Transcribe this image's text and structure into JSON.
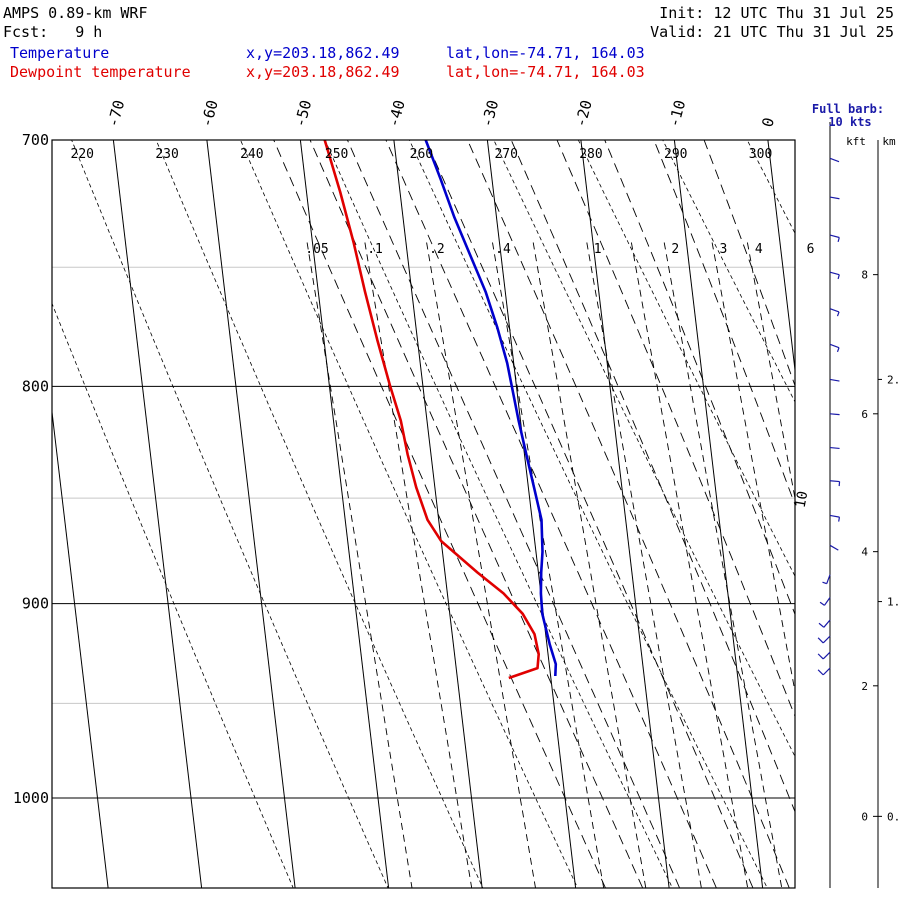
{
  "header": {
    "model": "AMPS 0.89-km WRF",
    "init": "Init: 12 UTC Thu 31 Jul 25",
    "fcst": "Fcst:   9 h",
    "valid": "Valid: 21 UTC Thu 31 Jul 25"
  },
  "legend": [
    {
      "name": "Temperature",
      "xy": "x,y=203.18,862.49",
      "latlon": "lat,lon=-74.71, 164.03",
      "color": "#0000cc"
    },
    {
      "name": "Dewpoint temperature",
      "xy": "x,y=203.18,862.49",
      "latlon": "lat,lon=-74.71, 164.03",
      "color": "#e00000"
    }
  ],
  "barb_note": {
    "line1": "Full barb:",
    "line2": "10 kts"
  },
  "height_axes": {
    "kft_label": "kft",
    "km_label": "km"
  },
  "chart_data": {
    "type": "line",
    "title": "",
    "xlabel": "",
    "ylabel": "",
    "pressure_axis": {
      "ylim": [
        1050,
        700
      ],
      "ticks": [
        700,
        800,
        900,
        1000
      ],
      "minor_ticks": [
        750,
        850,
        950
      ],
      "scale": "log"
    },
    "temperature_ticks": [
      -70,
      -60,
      -50,
      -40,
      -30,
      -20,
      -10,
      0
    ],
    "isotherm_spacing_deg": 10,
    "skew_deg_per_decade": 53.6,
    "dry_adiabat_labels_K": [
      220,
      230,
      240,
      250,
      260,
      270,
      280,
      290,
      300
    ],
    "dry_adiabat_range_K": [
      210,
      340
    ],
    "mixing_ratio_labels": [
      {
        "label": ".05",
        "w": 0.05
      },
      {
        "label": ".1",
        "w": 0.1
      },
      {
        "label": ".2",
        "w": 0.2
      },
      {
        "label": ".4",
        "w": 0.4
      },
      {
        "label": "1",
        "w": 1
      },
      {
        "label": "2",
        "w": 2
      },
      {
        "label": "3",
        "w": 3
      },
      {
        "label": "4",
        "w": 4
      },
      {
        "label": "6",
        "w": 6
      }
    ],
    "extra_mixing_ratios": [
      0.6,
      1.5
    ],
    "moist_adiabat_theta_w_C": [
      -30,
      -26,
      -22,
      -18,
      -14,
      -10,
      -6,
      -2,
      2,
      6,
      10
    ],
    "series": [
      {
        "name": "Temperature",
        "color": "#0000cc",
        "points": [
          {
            "p": 936,
            "t": -29.5
          },
          {
            "p": 930,
            "t": -29.3
          },
          {
            "p": 920,
            "t": -29.7
          },
          {
            "p": 905,
            "t": -30.1
          },
          {
            "p": 895,
            "t": -30.0
          },
          {
            "p": 885,
            "t": -29.7
          },
          {
            "p": 875,
            "t": -29.3
          },
          {
            "p": 860,
            "t": -29.0
          },
          {
            "p": 845,
            "t": -29.4
          },
          {
            "p": 830,
            "t": -29.8
          },
          {
            "p": 815,
            "t": -30.2
          },
          {
            "p": 800,
            "t": -30.5
          },
          {
            "p": 790,
            "t": -30.7
          },
          {
            "p": 775,
            "t": -31.3
          },
          {
            "p": 760,
            "t": -32.1
          },
          {
            "p": 745,
            "t": -33.3
          },
          {
            "p": 730,
            "t": -34.5
          },
          {
            "p": 715,
            "t": -35.5
          },
          {
            "p": 700,
            "t": -36.6
          }
        ]
      },
      {
        "name": "Dewpoint temperature",
        "color": "#e00000",
        "points": [
          {
            "p": 937,
            "t": -34.5
          },
          {
            "p": 932,
            "t": -31.3
          },
          {
            "p": 925,
            "t": -31.0
          },
          {
            "p": 915,
            "t": -31.2
          },
          {
            "p": 905,
            "t": -32.2
          },
          {
            "p": 895,
            "t": -34.0
          },
          {
            "p": 885,
            "t": -36.5
          },
          {
            "p": 870,
            "t": -40.0
          },
          {
            "p": 860,
            "t": -41.2
          },
          {
            "p": 845,
            "t": -42.0
          },
          {
            "p": 830,
            "t": -42.5
          },
          {
            "p": 815,
            "t": -42.8
          },
          {
            "p": 800,
            "t": -43.5
          },
          {
            "p": 780,
            "t": -44.3
          },
          {
            "p": 760,
            "t": -45.0
          },
          {
            "p": 740,
            "t": -45.6
          },
          {
            "p": 720,
            "t": -46.4
          },
          {
            "p": 700,
            "t": -47.4
          }
        ]
      }
    ],
    "wind_barbs": [
      {
        "p": 932,
        "speed_kt": 8,
        "dir_deg": 225
      },
      {
        "p": 924,
        "speed_kt": 8,
        "dir_deg": 225
      },
      {
        "p": 916,
        "speed_kt": 8,
        "dir_deg": 225
      },
      {
        "p": 908,
        "speed_kt": 7,
        "dir_deg": 220
      },
      {
        "p": 897,
        "speed_kt": 6,
        "dir_deg": 215
      },
      {
        "p": 886,
        "speed_kt": 5,
        "dir_deg": 200
      },
      {
        "p": 872,
        "speed_kt": 3,
        "dir_deg": 120
      },
      {
        "p": 858,
        "speed_kt": 5,
        "dir_deg": 100
      },
      {
        "p": 842,
        "speed_kt": 5,
        "dir_deg": 95
      },
      {
        "p": 827,
        "speed_kt": 4,
        "dir_deg": 95
      },
      {
        "p": 812,
        "speed_kt": 4,
        "dir_deg": 95
      },
      {
        "p": 797,
        "speed_kt": 4,
        "dir_deg": 100
      },
      {
        "p": 782,
        "speed_kt": 5,
        "dir_deg": 110
      },
      {
        "p": 767,
        "speed_kt": 5,
        "dir_deg": 110
      },
      {
        "p": 752,
        "speed_kt": 5,
        "dir_deg": 105
      },
      {
        "p": 737,
        "speed_kt": 5,
        "dir_deg": 105
      },
      {
        "p": 722,
        "speed_kt": 4,
        "dir_deg": 100
      },
      {
        "p": 707,
        "speed_kt": 4,
        "dir_deg": 110
      }
    ],
    "kft_ticks": [
      {
        "label": "0",
        "p": 1010
      },
      {
        "label": "2",
        "p": 941
      },
      {
        "label": "4",
        "p": 875
      },
      {
        "label": "6",
        "p": 812
      },
      {
        "label": "8",
        "p": 753
      }
    ],
    "km_ticks": [
      {
        "label": "0.",
        "p": 1010
      },
      {
        "label": "1.",
        "p": 899
      },
      {
        "label": "2.",
        "p": 797
      }
    ]
  }
}
